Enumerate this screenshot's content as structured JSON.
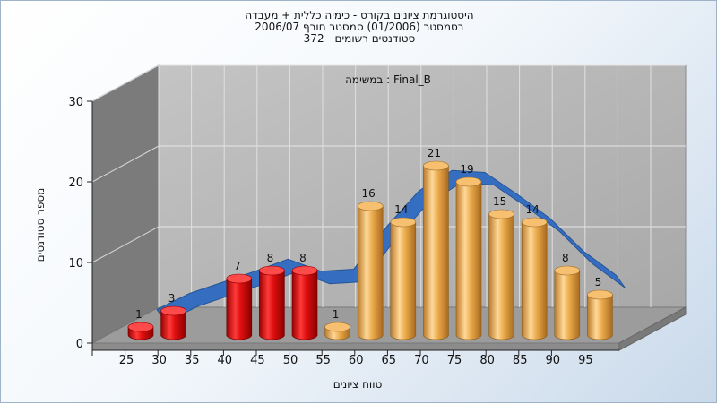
{
  "chart_data": {
    "type": "bar",
    "title_lines": [
      "היסטוגרמת ציונים בקורס - כימיה כללית + מעבדה",
      "בסמסטר  (01/2006)  סמסטר חורף 2006/07",
      "סטודנטים רשומים - 372"
    ],
    "subtitle": "במשימה : Final_B",
    "xlabel": "טווח ציונים",
    "ylabel": "מספר סטודנטים",
    "categories": [
      "25",
      "30",
      "35",
      "40",
      "45",
      "50",
      "55",
      "60",
      "65",
      "70",
      "75",
      "80",
      "85",
      "90",
      "95"
    ],
    "values": [
      1,
      3,
      null,
      7,
      8,
      8,
      1,
      16,
      14,
      21,
      19,
      15,
      14,
      8,
      5
    ],
    "bar_colors": [
      "red",
      "red",
      null,
      "red",
      "red",
      "red",
      "orange",
      "orange",
      "orange",
      "orange",
      "orange",
      "orange",
      "orange",
      "orange",
      "orange"
    ],
    "ylim": [
      0,
      30
    ],
    "yticks": [
      0,
      10,
      20,
      30
    ],
    "grid": true,
    "smooth_curve_series": "distribution curve (3D ribbon)",
    "colors": {
      "fail": "#e8141a",
      "pass": "#e8a040",
      "curve": "#2f6bc2",
      "walls": "#b4b4b4",
      "left_wall": "#7a7a7a"
    }
  }
}
